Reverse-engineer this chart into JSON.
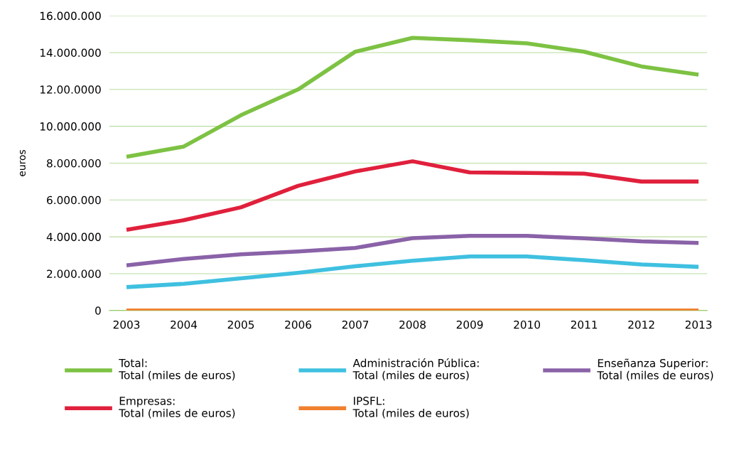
{
  "chart_data": {
    "type": "line",
    "ylabel": "euros",
    "categories": [
      "2003",
      "2004",
      "2005",
      "2006",
      "2007",
      "2008",
      "2009",
      "2010",
      "2011",
      "2012",
      "2013"
    ],
    "ylim": [
      0,
      16000000
    ],
    "yticks": [
      {
        "value": 0,
        "label": "0"
      },
      {
        "value": 2000000,
        "label": "2.000.000"
      },
      {
        "value": 4000000,
        "label": "4.000.000"
      },
      {
        "value": 6000000,
        "label": "6.000.000"
      },
      {
        "value": 8000000,
        "label": "8.000.000"
      },
      {
        "value": 10000000,
        "label": "10.000.000"
      },
      {
        "value": 12000000,
        "label": "12.00.0000"
      },
      {
        "value": 14000000,
        "label": "14.000.000"
      },
      {
        "value": 16000000,
        "label": "16.000.000"
      }
    ],
    "grid": "y",
    "legend": "bottom",
    "marker": "none",
    "line_style": "solid",
    "series": [
      {
        "name": "Total:\nTotal (miles de euros)",
        "color": "#7dc243",
        "values": [
          8350000,
          8900000,
          10600000,
          12000000,
          14050000,
          14800000,
          14670000,
          14500000,
          14050000,
          13250000,
          12800000
        ]
      },
      {
        "name": "Empresas:\nTotal (miles de euros)",
        "color": "#e0203c",
        "values": [
          4380000,
          4900000,
          5600000,
          6770000,
          7550000,
          8100000,
          7500000,
          7470000,
          7430000,
          7000000,
          7000000
        ]
      },
      {
        "name": "Administración Pública:\nTotal (miles de euros)",
        "color": "#3fc0e0",
        "values": [
          1270000,
          1450000,
          1750000,
          2050000,
          2400000,
          2700000,
          2930000,
          2930000,
          2730000,
          2500000,
          2370000
        ]
      },
      {
        "name": "IPSFL:\nTotal (miles de euros)",
        "color": "#f08030",
        "values": [
          0,
          0,
          0,
          0,
          0,
          0,
          0,
          0,
          0,
          0,
          0
        ]
      },
      {
        "name": "Enseñanza Superior:\nTotal (miles de euros)",
        "color": "#8a62a8",
        "values": [
          2450000,
          2800000,
          3050000,
          3200000,
          3400000,
          3930000,
          4050000,
          4050000,
          3920000,
          3750000,
          3670000
        ]
      }
    ]
  }
}
